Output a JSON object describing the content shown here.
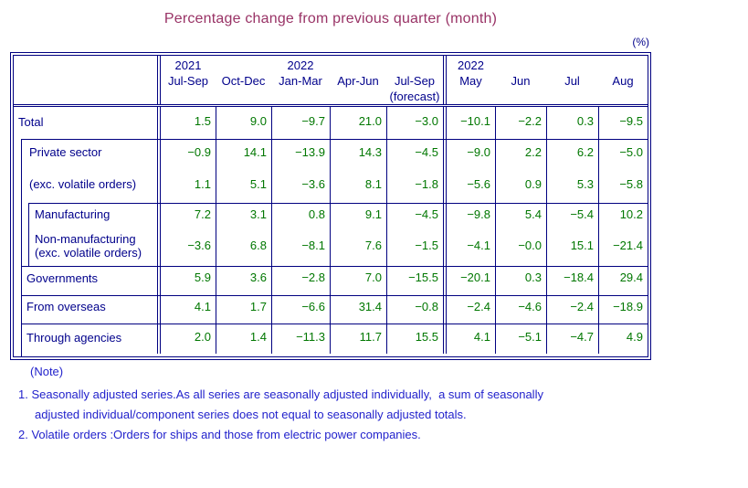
{
  "title": "Percentage change from previous quarter (month)",
  "unit_label": "(%)",
  "table": {
    "columns": [
      {
        "year": "2021",
        "period": "Jul-Sep",
        "sub": ""
      },
      {
        "year": "",
        "period": "Oct-Dec",
        "sub": ""
      },
      {
        "year": "2022",
        "period": "Jan-Mar",
        "sub": ""
      },
      {
        "year": "",
        "period": "Apr-Jun",
        "sub": ""
      },
      {
        "year": "",
        "period": "Jul-Sep",
        "sub": "(forecast)"
      },
      {
        "year": "2022",
        "period": "May",
        "sub": ""
      },
      {
        "year": "",
        "period": "Jun",
        "sub": ""
      },
      {
        "year": "",
        "period": "Jul",
        "sub": ""
      },
      {
        "year": "",
        "period": "Aug",
        "sub": ""
      }
    ],
    "rows": [
      {
        "label": "Total",
        "label2": "",
        "values": [
          "1.5",
          "9.0",
          "−9.7",
          "21.0",
          "−3.0",
          "−10.1",
          "−2.2",
          "0.3",
          "−9.5"
        ]
      },
      {
        "label": "Private sector",
        "label2": "",
        "values": [
          "−0.9",
          "14.1",
          "−13.9",
          "14.3",
          "−4.5",
          "−9.0",
          "2.2",
          "6.2",
          "−5.0"
        ]
      },
      {
        "label": "(exc. volatile orders)",
        "label2": "",
        "values": [
          "1.1",
          "5.1",
          "−3.6",
          "8.1",
          "−1.8",
          "−5.6",
          "0.9",
          "5.3",
          "−5.8"
        ]
      },
      {
        "label": "Manufacturing",
        "label2": "",
        "values": [
          "7.2",
          "3.1",
          "0.8",
          "9.1",
          "−4.5",
          "−9.8",
          "5.4",
          "−5.4",
          "10.2"
        ]
      },
      {
        "label": "Non-manufacturing",
        "label2": "(exc. volatile orders)",
        "values": [
          "−3.6",
          "6.8",
          "−8.1",
          "7.6",
          "−1.5",
          "−4.1",
          "−0.0",
          "15.1",
          "−21.4"
        ]
      },
      {
        "label": "Governments",
        "label2": "",
        "values": [
          "5.9",
          "3.6",
          "−2.8",
          "7.0",
          "−15.5",
          "−20.1",
          "0.3",
          "−18.4",
          "29.4"
        ]
      },
      {
        "label": "From overseas",
        "label2": "",
        "values": [
          "4.1",
          "1.7",
          "−6.6",
          "31.4",
          "−0.8",
          "−2.4",
          "−4.6",
          "−2.4",
          "−18.9"
        ]
      },
      {
        "label": "Through agencies",
        "label2": "",
        "values": [
          "2.0",
          "1.4",
          "−11.3",
          "11.7",
          "15.5",
          "4.1",
          "−5.1",
          "−4.7",
          "4.9"
        ]
      }
    ]
  },
  "notes": {
    "heading": "(Note)",
    "line1": "1. Seasonally adjusted series.As all series are seasonally adjusted individually,  a sum of seasonally",
    "line2": "adjusted individual/component series does not equal to seasonally adjusted totals.",
    "line3": "2. Volatile orders :Orders for ships and those from electric power companies."
  }
}
